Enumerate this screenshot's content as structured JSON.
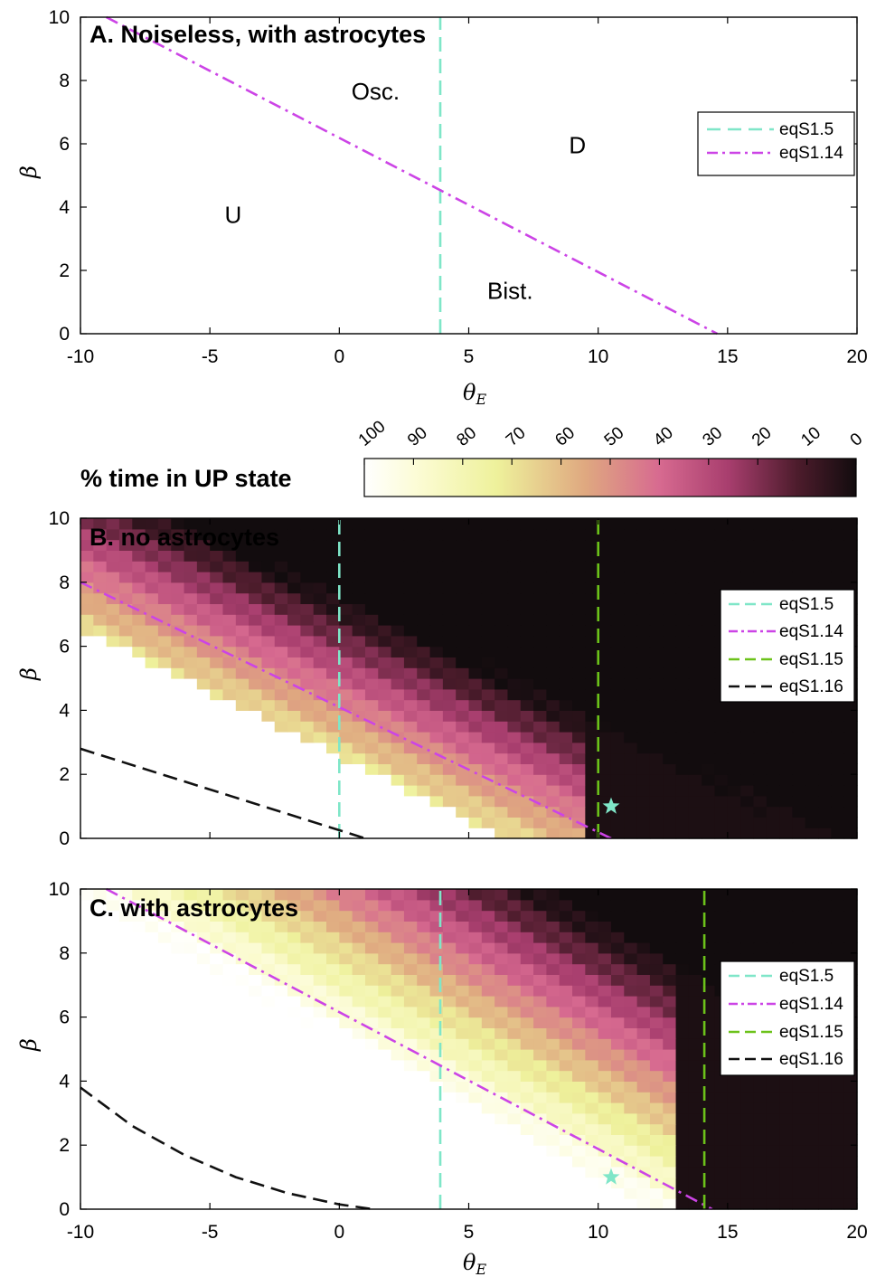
{
  "colors": {
    "eqS1_5": "#7fe6c8",
    "eqS1_14": "#cc44e6",
    "eqS1_15": "#6cc21a",
    "eqS1_16": "#111111",
    "star": "#7fe6c8"
  },
  "colorbar": {
    "label": "% time in UP state",
    "ticks": [
      "100",
      "90",
      "80",
      "70",
      "60",
      "50",
      "40",
      "30",
      "20",
      "10",
      "0"
    ]
  },
  "chart_data": [
    {
      "type": "line",
      "title": "A. Noiseless, with astrocytes",
      "xlabel": "θE",
      "ylabel": "β",
      "xlim": [
        -10,
        20
      ],
      "ylim": [
        0,
        10
      ],
      "xticks": [
        "-10",
        "-5",
        "0",
        "5",
        "10",
        "15",
        "20"
      ],
      "yticks": [
        "0",
        "2",
        "4",
        "6",
        "8",
        "10"
      ],
      "show_xticklabels": true,
      "legend_position": "upper-right",
      "regions": [
        {
          "label": "Osc.",
          "x": 1.4,
          "y": 7.4
        },
        {
          "label": "D",
          "x": 9.2,
          "y": 5.7
        },
        {
          "label": "U",
          "x": -4.1,
          "y": 3.5
        },
        {
          "label": "Bist.",
          "x": 6.6,
          "y": 1.1
        }
      ],
      "series": [
        {
          "name": "eqS1.5",
          "style": "dashed",
          "color": "#7fe6c8",
          "points": [
            [
              3.9,
              0
            ],
            [
              3.9,
              10
            ]
          ]
        },
        {
          "name": "eqS1.14",
          "style": "dashdot",
          "color": "#cc44e6",
          "points": [
            [
              -9.0,
              10.0
            ],
            [
              14.6,
              0
            ]
          ]
        }
      ]
    },
    {
      "type": "heatmap",
      "title": "B. no astrocytes",
      "ylabel": "β",
      "xlim": [
        -10,
        20
      ],
      "ylim": [
        0,
        10
      ],
      "xticks": [
        "-10",
        "-5",
        "0",
        "5",
        "10",
        "15",
        "20"
      ],
      "yticks": [
        "0",
        "2",
        "4",
        "6",
        "8",
        "10"
      ],
      "show_xticklabels": false,
      "legend_position": "upper-right",
      "value_label": "% time in UP state",
      "heatmap": {
        "xrange": [
          -10,
          20
        ],
        "yrange": [
          0,
          10
        ],
        "nx": 60,
        "ny": 30,
        "boundary_intercept": 4.0,
        "boundary_slope": -0.39,
        "transition_width": 7.0,
        "lower_cut_offset": 2.6,
        "lower_cut_slope": -0.4
      },
      "series": [
        {
          "name": "eqS1.5",
          "style": "dashed",
          "color": "#7fe6c8",
          "points": [
            [
              0,
              0
            ],
            [
              0,
              10
            ]
          ]
        },
        {
          "name": "eqS1.14",
          "style": "dashdot",
          "color": "#cc44e6",
          "points": [
            [
              -10,
              8
            ],
            [
              10.5,
              0
            ]
          ]
        },
        {
          "name": "eqS1.15",
          "style": "dashed",
          "color": "#6cc21a",
          "points": [
            [
              10,
              0
            ],
            [
              10,
              10
            ]
          ]
        },
        {
          "name": "eqS1.16",
          "style": "dashed",
          "color": "#111111",
          "points": [
            [
              -10,
              2.8
            ],
            [
              1,
              0
            ]
          ]
        }
      ],
      "marker": {
        "x": 10.5,
        "y": 1.0
      }
    },
    {
      "type": "heatmap",
      "title": "C. with astrocytes",
      "xlabel": "θE",
      "ylabel": "β",
      "xlim": [
        -10,
        20
      ],
      "ylim": [
        0,
        10
      ],
      "xticks": [
        "-10",
        "-5",
        "0",
        "5",
        "10",
        "15",
        "20"
      ],
      "yticks": [
        "0",
        "2",
        "4",
        "6",
        "8",
        "10"
      ],
      "show_xticklabels": true,
      "legend_position": "upper-right",
      "value_label": "% time in UP state",
      "heatmap": {
        "xrange": [
          -10,
          20
        ],
        "yrange": [
          0,
          10
        ],
        "nx": 60,
        "ny": 30,
        "boundary_intercept": 9.5,
        "boundary_slope": -0.45,
        "transition_width": 8.0,
        "lower_cut_offset": 3.0,
        "lower_cut_slope": -0.5
      },
      "series": [
        {
          "name": "eqS1.5",
          "style": "dashed",
          "color": "#7fe6c8",
          "points": [
            [
              3.9,
              0
            ],
            [
              3.9,
              10
            ]
          ]
        },
        {
          "name": "eqS1.14",
          "style": "dashdot",
          "color": "#cc44e6",
          "points": [
            [
              -9.0,
              10.0
            ],
            [
              14.4,
              0
            ]
          ]
        },
        {
          "name": "eqS1.15",
          "style": "dashed",
          "color": "#6cc21a",
          "points": [
            [
              14.1,
              0
            ],
            [
              14.1,
              10
            ]
          ]
        },
        {
          "name": "eqS1.16",
          "style": "dashed",
          "color": "#111111",
          "points": [
            [
              -10,
              3.8
            ],
            [
              -8,
              2.6
            ],
            [
              -6,
              1.7
            ],
            [
              -4,
              1.0
            ],
            [
              -2,
              0.5
            ],
            [
              0,
              0.15
            ],
            [
              1.3,
              0
            ]
          ]
        }
      ],
      "marker": {
        "x": 10.5,
        "y": 1.0
      }
    }
  ]
}
